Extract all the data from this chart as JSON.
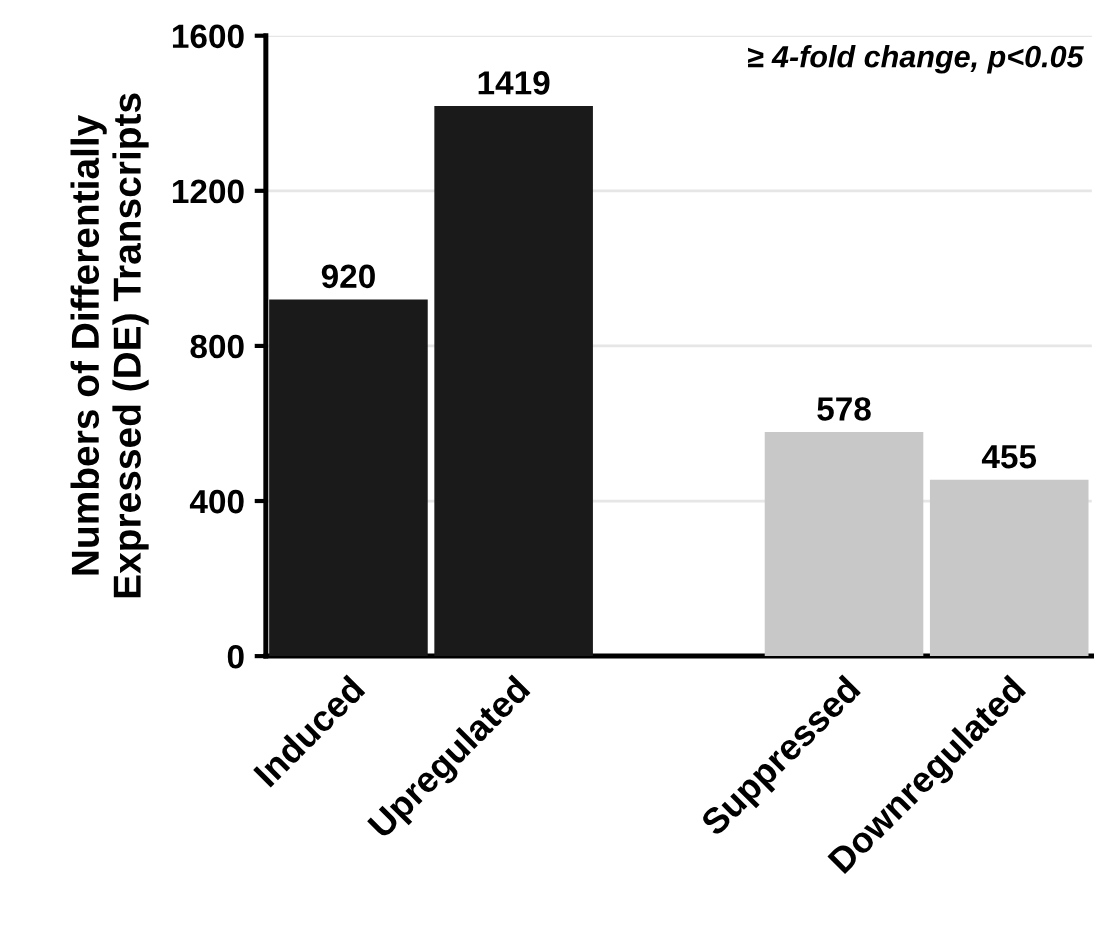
{
  "chart_data": {
    "type": "bar",
    "ylabel": "Numbers of Differentially\nExpressed (DE) Transcripts",
    "categories": [
      "Induced",
      "Upregulated",
      null,
      "Suppressed",
      "Downregulated"
    ],
    "values": [
      920,
      1419,
      null,
      578,
      455
    ],
    "colors": [
      "#1a1a1a",
      "#1a1a1a",
      null,
      "#c8c8c8",
      "#c8c8c8"
    ],
    "ylim": [
      0,
      1600
    ],
    "yticks": [
      0,
      400,
      800,
      1200,
      1600
    ],
    "grid": "y",
    "data_labels": true,
    "annotations": [
      "≥ 4-fold change, p<0.05"
    ]
  }
}
